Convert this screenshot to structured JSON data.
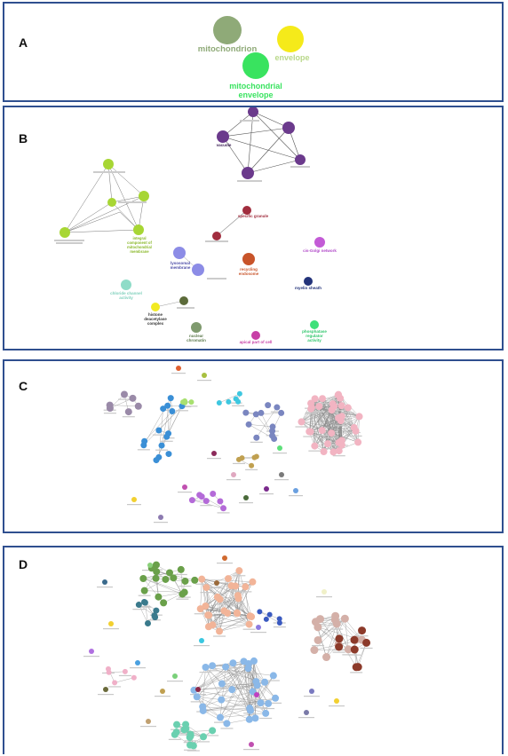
{
  "panels": {
    "a": {
      "letter": "A",
      "nodes": [
        {
          "label_lines": [
            "mitochondrion"
          ],
          "color": "#8faa78"
        },
        {
          "label_lines": [
            "envelope"
          ],
          "color": "#f5ea1a"
        },
        {
          "label_lines": [
            "mitochondrial",
            "envelope"
          ],
          "color": "#39e35f"
        }
      ]
    },
    "b": {
      "letter": "B",
      "clusters": [
        {
          "label_lines": [
            "vacuole"
          ],
          "color": "#6b3a8c"
        },
        {
          "label_lines": [
            "integral",
            "component of",
            "mitochondrial",
            "membrane"
          ],
          "color": "#a7d634"
        },
        {
          "label_lines": [
            "specific granule"
          ],
          "color": "#a12d3e"
        },
        {
          "label_lines": [
            "cis-Golgi network"
          ],
          "color": "#c35bd6"
        },
        {
          "label_lines": [
            "lysosomal",
            "membrane"
          ],
          "color": "#8c8ce6"
        },
        {
          "label_lines": [
            "recycling",
            "endosome"
          ],
          "color": "#c8542a"
        },
        {
          "label_lines": [
            "myelin sheath"
          ],
          "color": "#23337a"
        },
        {
          "label_lines": [
            "chloride channel",
            "activity"
          ],
          "color": "#8fdcc8"
        },
        {
          "label_lines": [
            "histone",
            "deacetylase",
            "complex"
          ],
          "color": "#f2ea22"
        },
        {
          "label_lines": [
            "nuclear",
            "chromatin"
          ],
          "color": "#7f9a6e"
        },
        {
          "label_lines": [
            "apical part of cell"
          ],
          "color": "#c73fa6"
        },
        {
          "label_lines": [
            "phosphatase",
            "regulator",
            "activity"
          ],
          "color": "#3fe07a"
        }
      ]
    },
    "c": {
      "letter": "C"
    },
    "d": {
      "letter": "D"
    }
  }
}
